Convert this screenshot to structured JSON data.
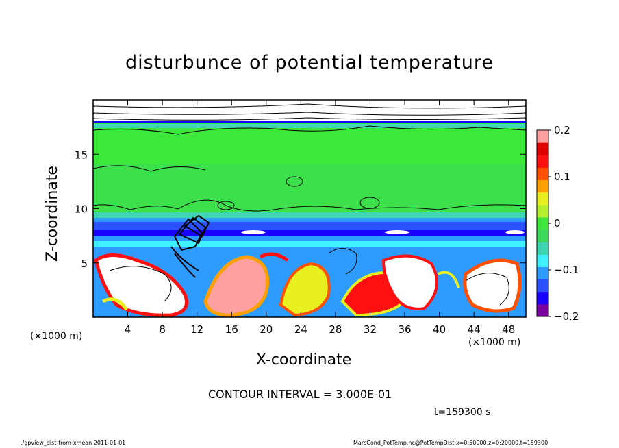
{
  "chart_data": {
    "type": "heatmap",
    "title": "disturbunce of potential temperature",
    "xlabel": "X-coordinate",
    "ylabel": "Z-coordinate",
    "x_unit_label": "(×1000 m)",
    "x_unit_label_right": "(×1000 m)",
    "x_ticks": [
      4,
      8,
      12,
      16,
      20,
      24,
      28,
      32,
      36,
      40,
      44,
      48
    ],
    "y_ticks": [
      5,
      10,
      15
    ],
    "xlim": [
      0,
      50
    ],
    "ylim": [
      0,
      20
    ],
    "colorbar": {
      "ticks": [
        -0.2,
        -0.1,
        0,
        0.1,
        0.2
      ],
      "tick_labels": [
        "−0.2",
        "−0.1",
        "0",
        "0.1",
        "0.2"
      ],
      "range": [
        -0.2,
        0.2
      ],
      "colors": [
        "#7a00a0",
        "#1a00ff",
        "#2a50ff",
        "#2d9bff",
        "#3ff0ff",
        "#3dd6b0",
        "#3cd85a",
        "#3ee83c",
        "#b5f02e",
        "#e8f020",
        "#ffa000",
        "#ff5000",
        "#ff1010",
        "#e00000",
        "#ffa0a0"
      ]
    },
    "contour_interval_text": "CONTOUR INTERVAL = 3.000E-01",
    "time_text": "t=159300 s"
  },
  "footer": {
    "left": "./gpview_dist-from-xmean  2011-01-01",
    "right": "MarsCond_PotTemp.nc@PotTempDist,x=0:50000,z=0:20000,t=159300"
  }
}
